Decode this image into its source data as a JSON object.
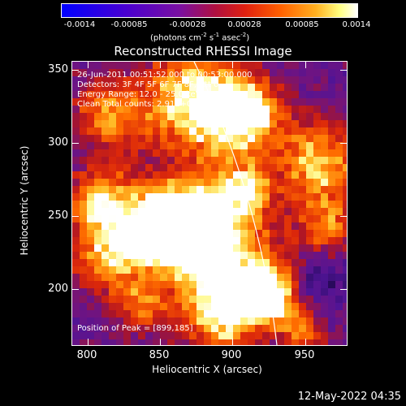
{
  "colorbar": {
    "ticks": [
      "-0.0014",
      "-0.00085",
      "-0.00028",
      "0.00028",
      "0.00085",
      "0.0014"
    ],
    "units_prefix": "(photons cm",
    "units_sup1": "-2",
    "units_mid": " s",
    "units_sup2": "-1",
    "units_mid2": " asec",
    "units_sup3": "-2",
    "units_suffix": ")"
  },
  "plot": {
    "title": "Reconstructed RHESSI Image",
    "info_lines": [
      "26-Jun-2011 00:51:52.000 to 00:53:00.000",
      "Detectors: 3F 4F 5F 6F 7F 8F, Att 0",
      "Energy Range: 12.0 - 25.0 keV",
      "Clean      Total counts: 2.91E+03"
    ],
    "peak_label": "Position of Peak = [899,185]",
    "x_ticks": [
      "800",
      "850",
      "900",
      "950"
    ],
    "y_ticks": [
      "350",
      "300",
      "250",
      "200"
    ],
    "x_label": "Heliocentric X (arcsec)",
    "y_label": "Heliocentric Y (arcsec)",
    "x_range": [
      783,
      973
    ],
    "y_range": [
      160,
      355
    ]
  },
  "timestamp": "12-May-2022 04:35"
}
